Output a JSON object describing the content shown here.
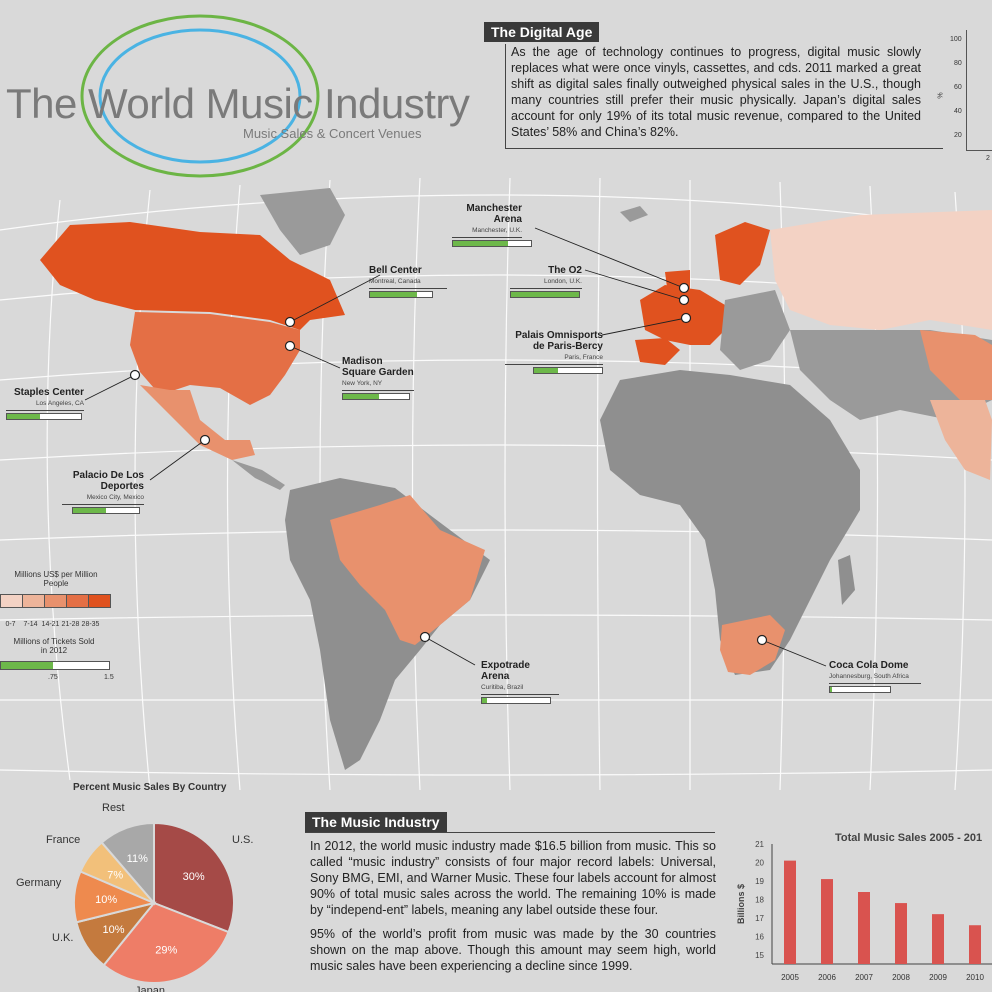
{
  "header": {
    "title": "The World Music Industry",
    "subtitle": "Music Sales & Concert Venues"
  },
  "digital_age": {
    "heading": "The Digital Age",
    "text": "As the age of technology continues to progress, digital music slowly replaces what were once vinyls, cassettes, and cds. 2011 marked a great shift as digital sales finally outweighed physical sales in the U.S., though many countries still prefer their music physically. Japan’s digital sales account for only 19% of its total music revenue, compared to the United States’ 58% and China’s 82%.",
    "mini_axis_label": "%",
    "mini_ticks": [
      "100",
      "80",
      "60",
      "40",
      "20"
    ],
    "mini_x_label": "2"
  },
  "venues": [
    {
      "name": "Manchester Arena",
      "city": "Manchester, U.K.",
      "tickets": 0.7
    },
    {
      "name": "Bell Center",
      "city": "Montreal, Canada",
      "tickets": 0.75
    },
    {
      "name": "The O2",
      "city": "London, U.K.",
      "tickets": 1.0
    },
    {
      "name": "Palais Omnisports de Paris-Bercy",
      "city": "Paris, France",
      "tickets": 0.35
    },
    {
      "name": "Madison Square Garden",
      "city": "New York, NY",
      "tickets": 0.55
    },
    {
      "name": "Staples Center",
      "city": "Los Angeles, CA",
      "tickets": 0.45
    },
    {
      "name": "Palacio De Los Deportes",
      "city": "Mexico City, Mexico",
      "tickets": 0.5
    },
    {
      "name": "Expotrade Arena",
      "city": "Curitiba, Brazil",
      "tickets": 0.08
    },
    {
      "name": "Coca Cola Dome",
      "city": "Johannesburg, South Africa",
      "tickets": 0.03
    }
  ],
  "legend": {
    "sales_title": "Millions US$ per Million People",
    "sales_bins": [
      "0-7",
      "7-14",
      "14-21",
      "21-28",
      "28-35"
    ],
    "sales_colors": [
      "#f3d2c4",
      "#edb49a",
      "#e8916d",
      "#e46f45",
      "#e0521f"
    ],
    "tickets_title": "Millions of Tickets Sold in 2012",
    "tickets_ticks": [
      ".75",
      "1.5"
    ]
  },
  "pie": {
    "title": "Percent Music Sales By Country",
    "slices": [
      {
        "label": "U.S.",
        "value": 30,
        "text": "30%",
        "color": "#a54a47"
      },
      {
        "label": "Japan",
        "value": 29,
        "text": "29%",
        "color": "#ee7d67"
      },
      {
        "label": "U.K.",
        "value": 10,
        "text": "10%",
        "color": "#c47a3e"
      },
      {
        "label": "Germany",
        "value": 10,
        "text": "10%",
        "color": "#ee8a4e"
      },
      {
        "label": "France",
        "value": 7,
        "text": "7%",
        "color": "#f2c07a"
      },
      {
        "label": "Rest",
        "value": 11,
        "text": "11%",
        "color": "#a8a8a8"
      }
    ]
  },
  "music_industry": {
    "heading": "The Music Industry",
    "para1": "In 2012, the world music industry made $16.5 billion from music. This so called “music industry” consists of four major record labels: Universal, Sony BMG, EMI, and Warner Music. These four labels account for almost 90% of total music sales across the world. The remaining 10% is made by “independ-ent” labels, meaning any label outside these four.",
    "para2": "95% of the world’s profit from music was made by the 30 countries shown on the map above. Though this amount may seem high, world music sales have been experiencing a decline since 1999."
  },
  "chart_data": {
    "type": "bar",
    "title": "Total Music Sales 2005 - 201",
    "ylabel": "Billions $",
    "xlabel": "",
    "categories": [
      "2005",
      "2006",
      "2007",
      "2008",
      "2009",
      "2010"
    ],
    "values": [
      20.1,
      19.1,
      18.4,
      17.8,
      17.2,
      16.6
    ],
    "ylim": [
      14.5,
      21
    ],
    "yticks": [
      15,
      16,
      17,
      18,
      19,
      20,
      21
    ],
    "color": "#d9534f"
  }
}
